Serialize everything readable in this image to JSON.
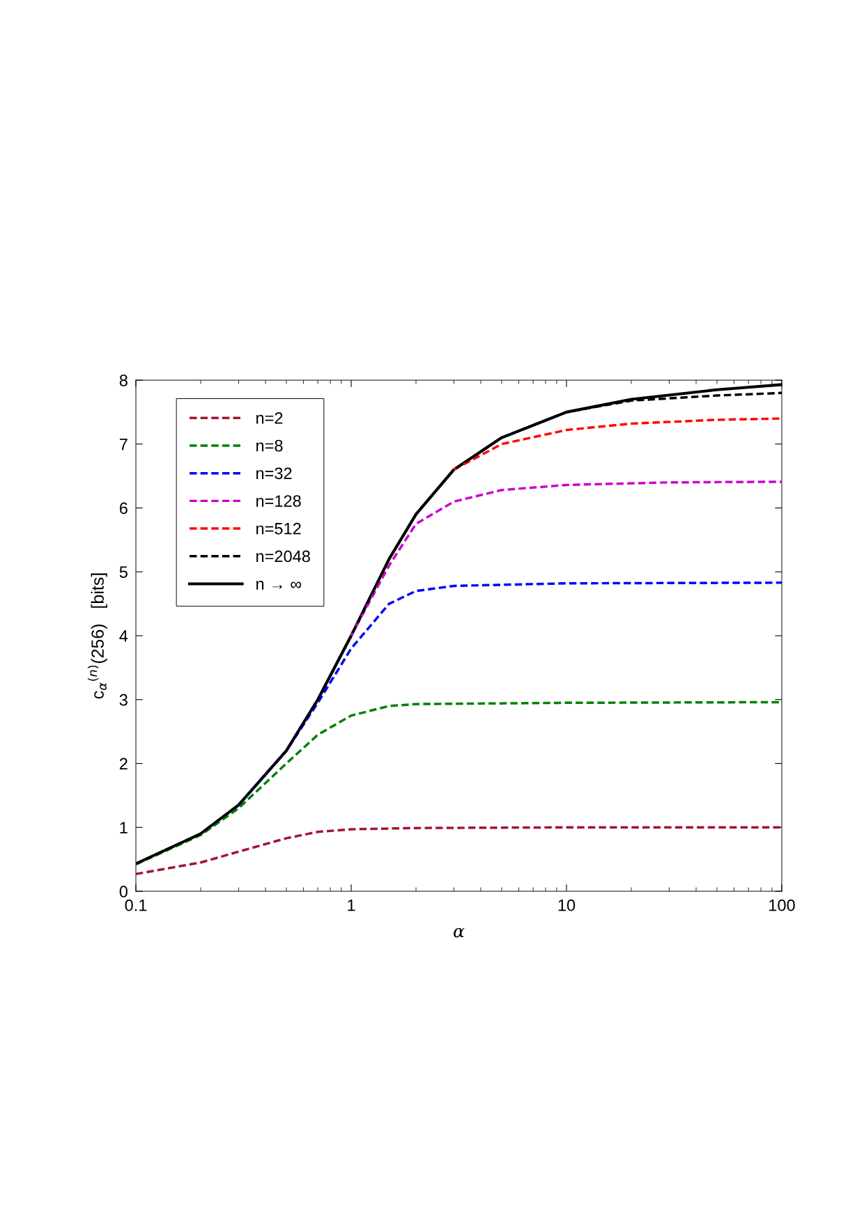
{
  "chart_data": {
    "type": "line",
    "xlabel": "α",
    "ylabel": "c$_{α}$$^{(n)}$(256)   [bits]",
    "log": "x",
    "xlim": [
      0.1,
      100
    ],
    "xticks": [
      0.1,
      1,
      10,
      100
    ],
    "ylim": [
      0,
      8
    ],
    "yticks": [
      0,
      1,
      2,
      3,
      4,
      5,
      6,
      7,
      8
    ],
    "grid": false,
    "legend": "top left",
    "marker": "none",
    "series": [
      {
        "name": "n=2",
        "color": "#a2142f",
        "line_style": "dashed",
        "x": [
          0.1,
          0.2,
          0.3,
          0.5,
          0.7,
          1,
          2,
          10,
          100
        ],
        "values": [
          0.27,
          0.45,
          0.62,
          0.83,
          0.93,
          0.97,
          0.99,
          1.0,
          1.0
        ]
      },
      {
        "name": "n=8",
        "color": "#008000",
        "line_style": "dashed",
        "x": [
          0.1,
          0.2,
          0.3,
          0.5,
          0.7,
          1,
          1.5,
          2,
          10,
          100
        ],
        "values": [
          0.42,
          0.88,
          1.3,
          2.0,
          2.45,
          2.75,
          2.9,
          2.93,
          2.95,
          2.96
        ]
      },
      {
        "name": "n=32",
        "color": "#0000ff",
        "line_style": "dashed",
        "x": [
          0.3,
          0.5,
          0.7,
          1,
          1.5,
          2,
          3,
          10,
          100
        ],
        "values": [
          1.35,
          2.2,
          2.95,
          3.8,
          4.5,
          4.7,
          4.78,
          4.82,
          4.83
        ]
      },
      {
        "name": "n=128",
        "color": "#cc00cc",
        "line_style": "dashed",
        "x": [
          1,
          1.5,
          2,
          3,
          5,
          10,
          30,
          100
        ],
        "values": [
          4.0,
          5.1,
          5.75,
          6.1,
          6.28,
          6.36,
          6.4,
          6.41
        ]
      },
      {
        "name": "n=512",
        "color": "#ff0000",
        "line_style": "dashed",
        "x": [
          3,
          5,
          10,
          20,
          50,
          100
        ],
        "values": [
          6.6,
          7.0,
          7.22,
          7.32,
          7.38,
          7.4
        ]
      },
      {
        "name": "n=2048",
        "color": "#000000",
        "line_style": "dashed",
        "x": [
          0.1,
          0.2,
          0.3,
          0.5,
          0.7,
          1,
          1.5,
          2,
          3,
          5,
          10,
          20,
          50,
          100
        ],
        "values": [
          0.43,
          0.9,
          1.35,
          2.2,
          3.0,
          4.0,
          5.2,
          5.9,
          6.6,
          7.1,
          7.5,
          7.68,
          7.76,
          7.8
        ]
      },
      {
        "name": "n → ∞",
        "color": "#000000",
        "line_style": "solid",
        "x": [
          0.1,
          0.2,
          0.3,
          0.5,
          0.7,
          1,
          1.5,
          2,
          3,
          5,
          10,
          20,
          50,
          100
        ],
        "values": [
          0.43,
          0.9,
          1.35,
          2.2,
          3.0,
          4.0,
          5.2,
          5.9,
          6.6,
          7.1,
          7.5,
          7.7,
          7.85,
          7.93
        ]
      }
    ]
  }
}
